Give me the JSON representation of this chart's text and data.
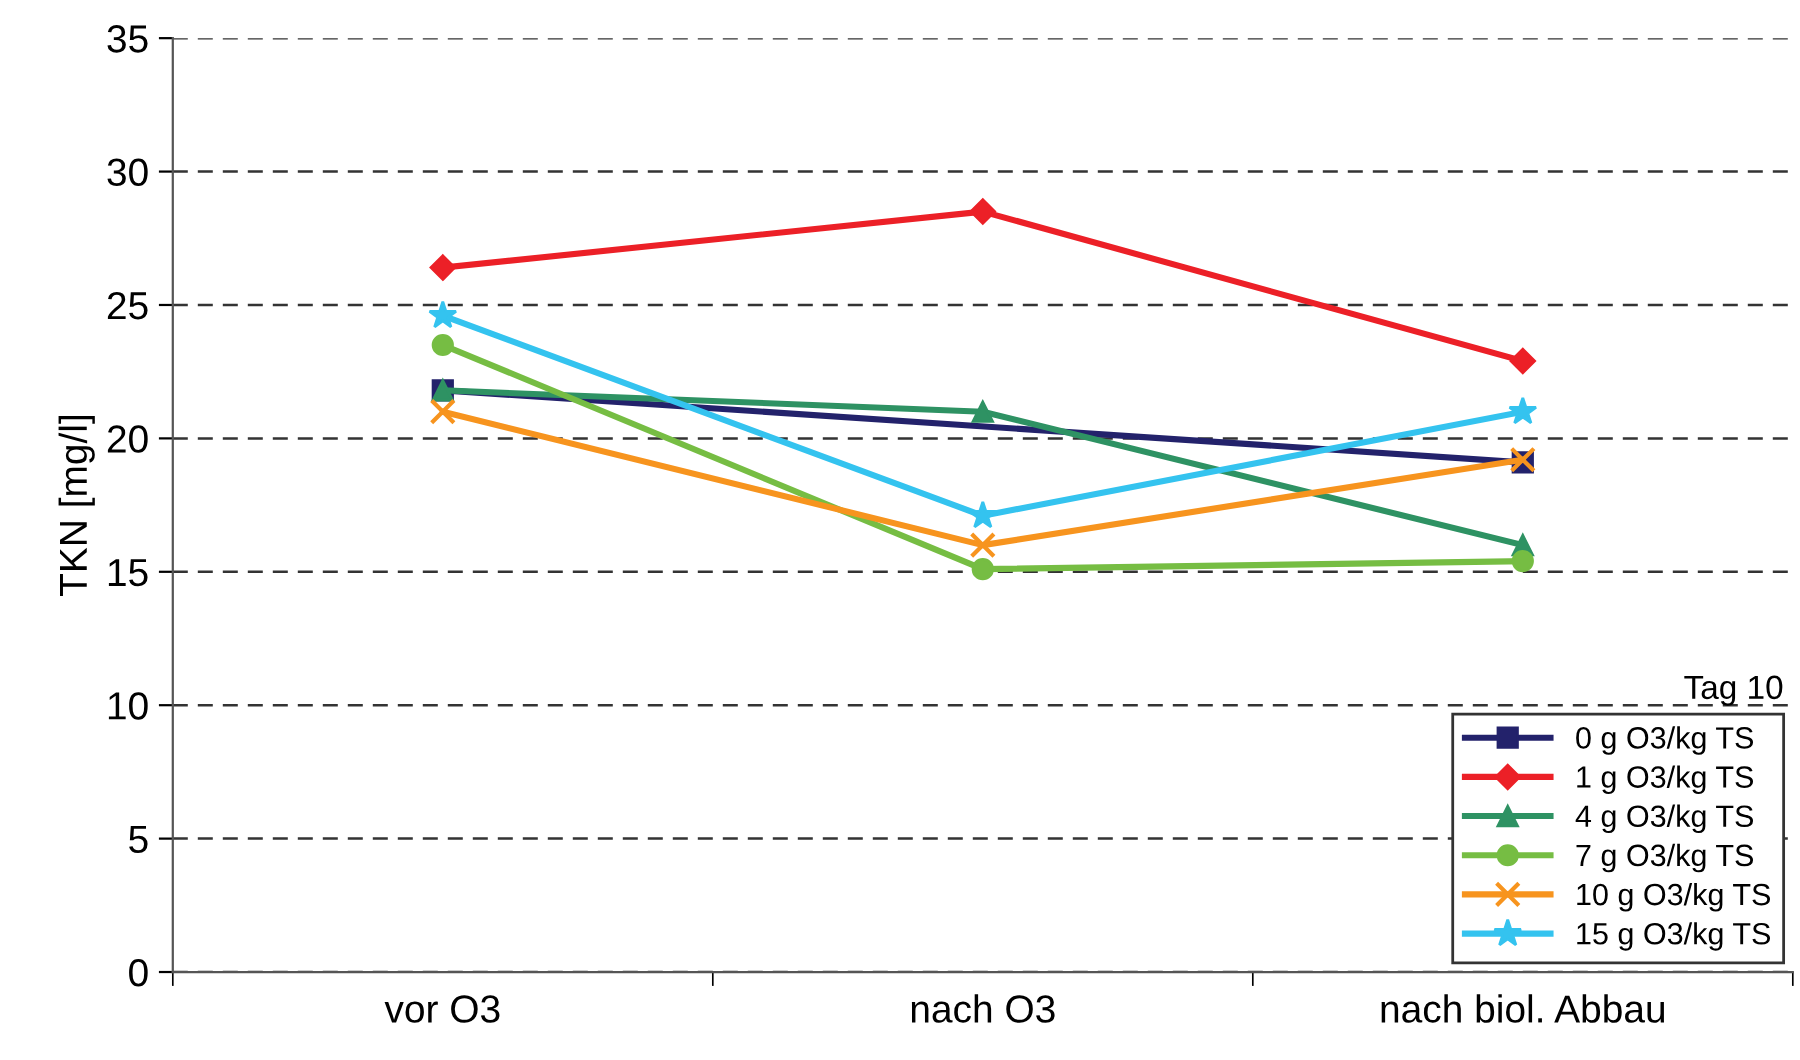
{
  "chart_data": {
    "type": "line",
    "ylabel": "TKN [mg/l]",
    "categories": [
      "vor O3",
      "nach O3",
      "nach biol. Abbau"
    ],
    "series": [
      {
        "name": "0 g O3/kg TS",
        "color": "#23226b",
        "marker": "square",
        "x": [
          "vor O3",
          "nach biol. Abbau"
        ],
        "values": [
          21.8,
          19.1
        ]
      },
      {
        "name": "1 g O3/kg TS",
        "color": "#ec2027",
        "marker": "diamond",
        "values": [
          26.4,
          28.5,
          22.9
        ]
      },
      {
        "name": "4 g O3/kg TS",
        "color": "#2e9263",
        "marker": "triangle",
        "values": [
          21.8,
          21.0,
          16.0
        ]
      },
      {
        "name": "7 g O3/kg TS",
        "color": "#76bd43",
        "marker": "circle",
        "values": [
          23.5,
          15.1,
          15.4
        ]
      },
      {
        "name": "10 g O3/kg TS",
        "color": "#f7941e",
        "marker": "cross",
        "values": [
          21.0,
          16.0,
          19.2
        ]
      },
      {
        "name": "15 g O3/kg TS",
        "color": "#34c3ef",
        "marker": "star",
        "values": [
          24.6,
          17.1,
          21.0
        ]
      }
    ],
    "ylim": [
      0,
      35
    ],
    "yticks": [
      0,
      5,
      10,
      15,
      20,
      25,
      30,
      35
    ],
    "grid": "y",
    "legend": "bottom right",
    "line_style": "solid",
    "annotations": [
      "Tag 10"
    ]
  }
}
